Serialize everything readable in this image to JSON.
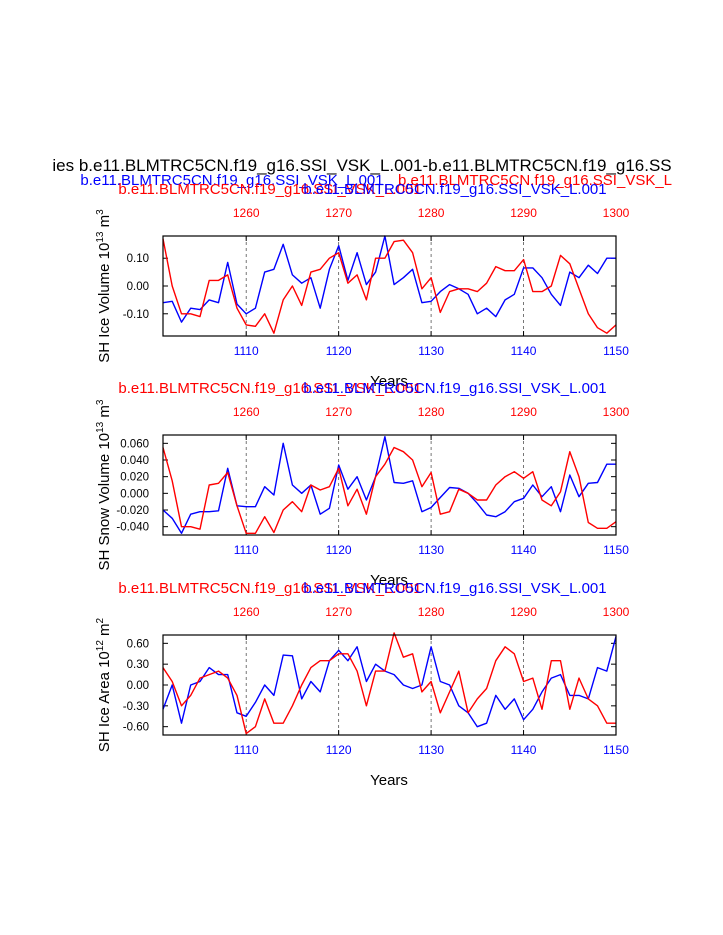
{
  "figure": {
    "main_title": "ies b.e11.BLMTRC5CN.f19_g16.SSI_VSK_L.001-b.e11.BLMTRC5CN.f19_g16.SS",
    "subtitle_left": "b.e11.BLMTRC5CN.f19_g16.SSI_VSK_L.001",
    "subtitle_right": "b.e11.BLMTRC5CN.f19_g16.SSI_VSK_L",
    "colors": {
      "blue": "#0000ff",
      "red": "#ff0000",
      "axis": "#000000",
      "grid": "#555555"
    }
  },
  "chart_data": [
    {
      "type": "line",
      "title_red": "b.e11.BLMTRC5CN.f19_g16.SSI_VSK_L.001",
      "title_blue": "b.e11.BLMTRC5CN.f19_g16.SSI_VSK_L.001",
      "ylabel": "SH Ice Volume 10",
      "ylabel_exp": "13",
      "ylabel_unit": "m",
      "ylabel_unit_exp": "3",
      "xlabel": "Years",
      "ylim": [
        -0.18,
        0.18
      ],
      "yticks": [
        -0.1,
        0.0,
        0.1
      ],
      "ytick_labels": [
        "-0.10",
        "0.00",
        "0.10"
      ],
      "xlim_bottom": [
        1101,
        1150
      ],
      "xticks_bottom": [
        "1110",
        "1120",
        "1130",
        "1140",
        "1150"
      ],
      "xticks_top": [
        "1260",
        "1270",
        "1280",
        "1290",
        "1300"
      ],
      "series": [
        {
          "name": "blue",
          "color": "#0000ff",
          "x": [
            1101,
            1102,
            1103,
            1104,
            1105,
            1106,
            1107,
            1108,
            1109,
            1110,
            1111,
            1112,
            1113,
            1114,
            1115,
            1116,
            1117,
            1118,
            1119,
            1120,
            1121,
            1122,
            1123,
            1124,
            1125,
            1126,
            1127,
            1128,
            1129,
            1130,
            1131,
            1132,
            1133,
            1134,
            1135,
            1136,
            1137,
            1138,
            1139,
            1140,
            1141,
            1142,
            1143,
            1144,
            1145,
            1146,
            1147,
            1148,
            1149,
            1150
          ],
          "values": [
            -0.06,
            -0.055,
            -0.13,
            -0.08,
            -0.085,
            -0.05,
            -0.06,
            0.085,
            -0.065,
            -0.1,
            -0.08,
            0.05,
            0.06,
            0.15,
            0.04,
            0.01,
            0.03,
            -0.08,
            0.06,
            0.145,
            0.02,
            0.12,
            0.005,
            0.05,
            0.18,
            0.005,
            0.03,
            0.06,
            -0.06,
            -0.055,
            -0.02,
            0.005,
            -0.01,
            -0.03,
            -0.1,
            -0.08,
            -0.11,
            -0.05,
            -0.03,
            0.065,
            0.065,
            0.03,
            -0.03,
            -0.07,
            0.05,
            0.03,
            0.075,
            0.045,
            0.1,
            0.1
          ]
        },
        {
          "name": "red",
          "color": "#ff0000",
          "x": [
            1101,
            1102,
            1103,
            1104,
            1105,
            1106,
            1107,
            1108,
            1109,
            1110,
            1111,
            1112,
            1113,
            1114,
            1115,
            1116,
            1117,
            1118,
            1119,
            1120,
            1121,
            1122,
            1123,
            1124,
            1125,
            1126,
            1127,
            1128,
            1129,
            1130,
            1131,
            1132,
            1133,
            1134,
            1135,
            1136,
            1137,
            1138,
            1139,
            1140,
            1141,
            1142,
            1143,
            1144,
            1145,
            1146,
            1147,
            1148,
            1149,
            1150
          ],
          "values": [
            0.17,
            0.0,
            -0.1,
            -0.1,
            -0.11,
            0.02,
            0.02,
            0.04,
            -0.08,
            -0.14,
            -0.145,
            -0.1,
            -0.17,
            -0.05,
            0.0,
            -0.07,
            0.05,
            0.06,
            0.1,
            0.12,
            0.01,
            0.04,
            -0.05,
            0.1,
            0.1,
            0.16,
            0.165,
            0.12,
            -0.01,
            0.03,
            -0.095,
            -0.02,
            -0.01,
            -0.01,
            -0.02,
            0.01,
            0.07,
            0.055,
            0.055,
            0.095,
            -0.02,
            -0.02,
            0.0,
            0.11,
            0.08,
            -0.01,
            -0.1,
            -0.15,
            -0.17,
            -0.14
          ]
        }
      ]
    },
    {
      "type": "line",
      "title_red": "b.e11.BLMTRC5CN.f19_g16.SSI_VSK_L.001",
      "title_blue": "b.e11.BLMTRC5CN.f19_g16.SSI_VSK_L.001",
      "ylabel": "SH Snow Volume 10",
      "ylabel_exp": "13",
      "ylabel_unit": "m",
      "ylabel_unit_exp": "3",
      "xlabel": "Years",
      "ylim": [
        -0.05,
        0.07
      ],
      "yticks": [
        -0.04,
        -0.02,
        0.0,
        0.02,
        0.04,
        0.06
      ],
      "ytick_labels": [
        "-0.040",
        "-0.020",
        "0.000",
        "0.020",
        "0.040",
        "0.060"
      ],
      "xlim_bottom": [
        1101,
        1150
      ],
      "xticks_bottom": [
        "1110",
        "1120",
        "1130",
        "1140",
        "1150"
      ],
      "xticks_top": [
        "1260",
        "1270",
        "1280",
        "1290",
        "1300"
      ],
      "series": [
        {
          "name": "blue",
          "color": "#0000ff",
          "x": [
            1101,
            1102,
            1103,
            1104,
            1105,
            1106,
            1107,
            1108,
            1109,
            1110,
            1111,
            1112,
            1113,
            1114,
            1115,
            1116,
            1117,
            1118,
            1119,
            1120,
            1121,
            1122,
            1123,
            1124,
            1125,
            1126,
            1127,
            1128,
            1129,
            1130,
            1131,
            1132,
            1133,
            1134,
            1135,
            1136,
            1137,
            1138,
            1139,
            1140,
            1141,
            1142,
            1143,
            1144,
            1145,
            1146,
            1147,
            1148,
            1149,
            1150
          ],
          "values": [
            -0.02,
            -0.03,
            -0.048,
            -0.025,
            -0.022,
            -0.022,
            -0.021,
            0.03,
            -0.015,
            -0.016,
            -0.016,
            0.008,
            -0.002,
            0.06,
            0.01,
            0.0,
            0.01,
            -0.025,
            -0.018,
            0.034,
            0.005,
            0.02,
            -0.008,
            0.02,
            0.068,
            0.013,
            0.012,
            0.015,
            -0.022,
            -0.017,
            -0.005,
            0.007,
            0.006,
            0.0,
            -0.012,
            -0.026,
            -0.028,
            -0.022,
            -0.01,
            -0.006,
            0.01,
            -0.004,
            0.008,
            -0.022,
            0.022,
            -0.004,
            0.012,
            0.013,
            0.035,
            0.035
          ]
        },
        {
          "name": "red",
          "color": "#ff0000",
          "x": [
            1101,
            1102,
            1103,
            1104,
            1105,
            1106,
            1107,
            1108,
            1109,
            1110,
            1111,
            1112,
            1113,
            1114,
            1115,
            1116,
            1117,
            1118,
            1119,
            1120,
            1121,
            1122,
            1123,
            1124,
            1125,
            1126,
            1127,
            1128,
            1129,
            1130,
            1131,
            1132,
            1133,
            1134,
            1135,
            1136,
            1137,
            1138,
            1139,
            1140,
            1141,
            1142,
            1143,
            1144,
            1145,
            1146,
            1147,
            1148,
            1149,
            1150
          ],
          "values": [
            0.055,
            0.015,
            -0.04,
            -0.04,
            -0.043,
            0.01,
            0.012,
            0.025,
            -0.015,
            -0.048,
            -0.048,
            -0.028,
            -0.047,
            -0.02,
            -0.01,
            -0.022,
            0.01,
            0.004,
            0.008,
            0.03,
            -0.015,
            0.005,
            -0.025,
            0.02,
            0.035,
            0.055,
            0.05,
            0.04,
            0.008,
            0.025,
            -0.025,
            -0.022,
            0.005,
            0.0,
            -0.008,
            -0.008,
            0.01,
            0.02,
            0.026,
            0.018,
            0.026,
            -0.008,
            -0.015,
            0.002,
            0.05,
            0.02,
            -0.035,
            -0.042,
            -0.042,
            -0.034
          ]
        }
      ]
    },
    {
      "type": "line",
      "title_red": "b.e11.BLMTRC5CN.f19_g16.SSI_VSK_L.001",
      "title_blue": "b.e11.BLMTRC5CN.f19_g16.SSI_VSK_L.001",
      "ylabel": "SH Ice Area 10",
      "ylabel_exp": "12",
      "ylabel_unit": "m",
      "ylabel_unit_exp": "2",
      "xlabel": "Years",
      "ylim": [
        -0.72,
        0.72
      ],
      "yticks": [
        -0.6,
        -0.3,
        0.0,
        0.3,
        0.6
      ],
      "ytick_labels": [
        "-0.60",
        "-0.30",
        "0.00",
        "0.30",
        "0.60"
      ],
      "xlim_bottom": [
        1101,
        1150
      ],
      "xticks_bottom": [
        "1110",
        "1120",
        "1130",
        "1140",
        "1150"
      ],
      "xticks_top": [
        "1260",
        "1270",
        "1280",
        "1290",
        "1300"
      ],
      "series": [
        {
          "name": "blue",
          "color": "#0000ff",
          "x": [
            1101,
            1102,
            1103,
            1104,
            1105,
            1106,
            1107,
            1108,
            1109,
            1110,
            1111,
            1112,
            1113,
            1114,
            1115,
            1116,
            1117,
            1118,
            1119,
            1120,
            1121,
            1122,
            1123,
            1124,
            1125,
            1126,
            1127,
            1128,
            1129,
            1130,
            1131,
            1132,
            1133,
            1134,
            1135,
            1136,
            1137,
            1138,
            1139,
            1140,
            1141,
            1142,
            1143,
            1144,
            1145,
            1146,
            1147,
            1148,
            1149,
            1150
          ],
          "values": [
            -0.35,
            0.0,
            -0.55,
            0.0,
            0.05,
            0.25,
            0.15,
            0.15,
            -0.4,
            -0.45,
            -0.25,
            0.0,
            -0.15,
            0.43,
            0.42,
            -0.2,
            0.05,
            -0.1,
            0.35,
            0.5,
            0.35,
            0.55,
            0.05,
            0.3,
            0.2,
            0.15,
            0.0,
            -0.05,
            0.0,
            0.55,
            0.05,
            0.0,
            -0.3,
            -0.4,
            -0.6,
            -0.55,
            -0.15,
            -0.35,
            -0.2,
            -0.5,
            -0.35,
            -0.1,
            0.1,
            0.15,
            -0.15,
            -0.15,
            -0.2,
            0.25,
            0.2,
            0.7
          ]
        },
        {
          "name": "red",
          "color": "#ff0000",
          "x": [
            1101,
            1102,
            1103,
            1104,
            1105,
            1106,
            1107,
            1108,
            1109,
            1110,
            1111,
            1112,
            1113,
            1114,
            1115,
            1116,
            1117,
            1118,
            1119,
            1120,
            1121,
            1122,
            1123,
            1124,
            1125,
            1126,
            1127,
            1128,
            1129,
            1130,
            1131,
            1132,
            1133,
            1134,
            1135,
            1136,
            1137,
            1138,
            1139,
            1140,
            1141,
            1142,
            1143,
            1144,
            1145,
            1146,
            1147,
            1148,
            1149,
            1150
          ],
          "values": [
            0.25,
            0.05,
            -0.3,
            -0.15,
            0.1,
            0.15,
            0.2,
            0.1,
            -0.15,
            -0.7,
            -0.6,
            -0.2,
            -0.55,
            -0.55,
            -0.3,
            0.0,
            0.25,
            0.35,
            0.35,
            0.45,
            0.45,
            0.2,
            -0.3,
            0.2,
            0.2,
            0.75,
            0.4,
            0.45,
            -0.1,
            0.05,
            -0.4,
            -0.1,
            0.2,
            -0.4,
            -0.2,
            -0.05,
            0.35,
            0.55,
            0.45,
            0.05,
            0.1,
            -0.35,
            0.35,
            0.35,
            -0.35,
            0.1,
            -0.2,
            -0.3,
            -0.55,
            -0.55
          ]
        }
      ]
    }
  ]
}
